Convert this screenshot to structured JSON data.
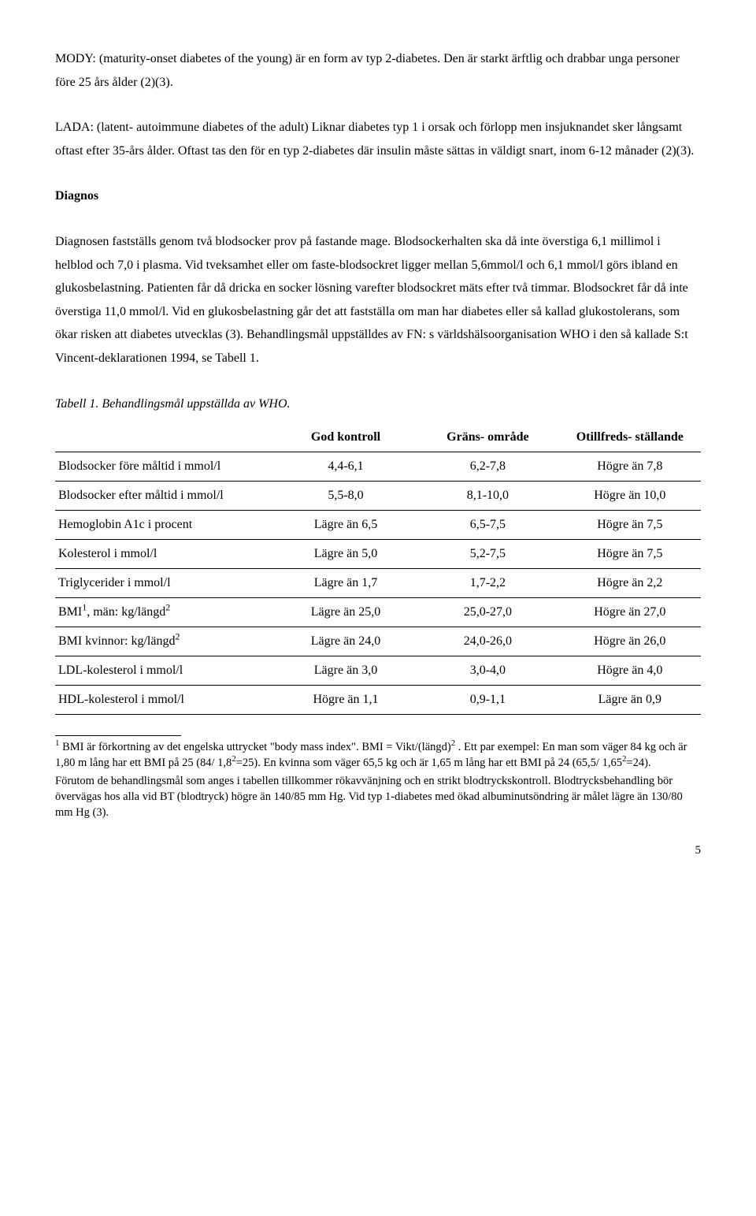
{
  "paragraphs": {
    "p1": "MODY: (maturity-onset diabetes of the young) är en form av typ 2-diabetes. Den är starkt ärftlig och drabbar unga personer före 25 års ålder (2)(3).",
    "p2": "LADA: (latent- autoimmune diabetes of the adult) Liknar diabetes typ 1 i orsak och förlopp men insjuknandet sker långsamt oftast efter 35-års ålder. Oftast tas den för en typ 2-diabetes där insulin måste sättas in väldigt snart, inom 6-12 månader (2)(3).",
    "h1": "Diagnos",
    "p3": "Diagnosen fastställs genom två blodsocker prov på fastande mage. Blodsockerhalten ska då inte överstiga 6,1 millimol i helblod och 7,0 i plasma. Vid tveksamhet eller om faste-blodsockret ligger mellan 5,6mmol/l och 6,1 mmol/l görs ibland en glukosbelastning. Patienten får då dricka en socker lösning varefter blodsockret mäts efter två timmar. Blodsockret får då inte överstiga 11,0 mmol/l. Vid en glukosbelastning går det att fastställa om man har diabetes eller så kallad glukostolerans, som ökar risken att diabetes utvecklas (3). Behandlingsmål uppställdes av FN: s världshälsoorganisation WHO i den så kallade S:t Vincent-deklarationen 1994, se Tabell 1.",
    "caption": "Tabell 1. Behandlingsmål uppställda av WHO."
  },
  "table": {
    "headers": [
      "",
      "God kontroll",
      "Gräns- område",
      "Otillfreds- ställande"
    ],
    "rows": [
      {
        "label": "Blodsocker före måltid i mmol/l",
        "a": "4,4-6,1",
        "b": "6,2-7,8",
        "c": "Högre än 7,8"
      },
      {
        "label": "Blodsocker efter måltid i mmol/l",
        "a": "5,5-8,0",
        "b": "8,1-10,0",
        "c": "Högre än 10,0"
      },
      {
        "label": "Hemoglobin A1c i procent",
        "a": "Lägre än 6,5",
        "b": "6,5-7,5",
        "c": "Högre än 7,5"
      },
      {
        "label": "Kolesterol i mmol/l",
        "a": "Lägre än 5,0",
        "b": "5,2-7,5",
        "c": "Högre än 7,5"
      },
      {
        "label": "Triglycerider i mmol/l",
        "a": "Lägre än 1,7",
        "b": "1,7-2,2",
        "c": "Högre än 2,2"
      },
      {
        "label_html": "BMI<sup>1</sup>, män: kg/längd<sup>2</sup>",
        "a": "Lägre än 25,0",
        "b": "25,0-27,0",
        "c": "Högre än 27,0"
      },
      {
        "label_html": "BMI kvinnor: kg/längd<sup>2</sup>",
        "a": "Lägre än 24,0",
        "b": "24,0-26,0",
        "c": "Högre än 26,0"
      },
      {
        "label": "LDL-kolesterol i mmol/l",
        "a": "Lägre än 3,0",
        "b": "3,0-4,0",
        "c": "Högre än 4,0"
      },
      {
        "label": "HDL-kolesterol i mmol/l",
        "a": "Högre än 1,1",
        "b": "0,9-1,1",
        "c": "Lägre än 0,9"
      }
    ]
  },
  "footnotes": {
    "f1_html": "<sup>1</sup> BMI är förkortning av det engelska uttrycket \"body mass index\". BMI = Vikt/(längd)<sup>2</sup> . Ett par exempel: En man som väger 84 kg och är 1,80 m lång har ett BMI på 25 (84/ 1,8<sup>2</sup>=25). En kvinna som väger 65,5 kg och är 1,65 m lång har ett BMI på 24 (65,5/ 1,65<sup>2</sup>=24).",
    "f2": "Förutom de behandlingsmål som anges i tabellen tillkommer rökavvänjning och en strikt blodtryckskontroll. Blodtrycksbehandling bör övervägas hos alla vid BT (blodtryck) högre än 140/85 mm Hg. Vid typ 1-diabetes med ökad albuminutsöndring är målet lägre än 130/80 mm Hg (3)."
  },
  "page_number": "5"
}
